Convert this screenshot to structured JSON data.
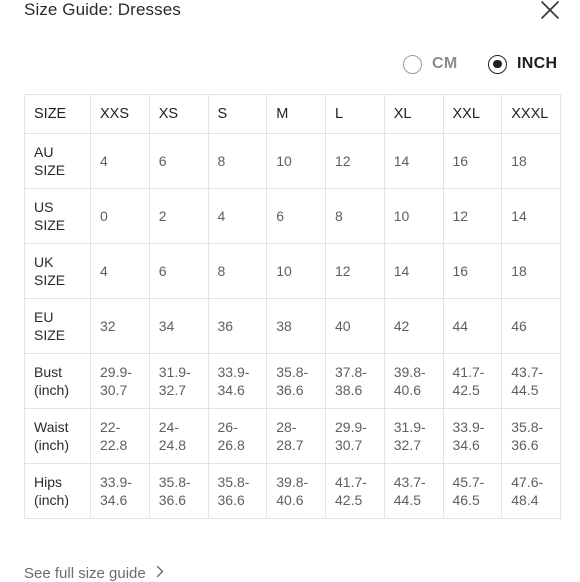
{
  "header": {
    "title": "Size Guide: Dresses",
    "close_icon": "close-icon"
  },
  "units": {
    "options": [
      {
        "label": "CM",
        "selected": false
      },
      {
        "label": "INCH",
        "selected": true
      }
    ]
  },
  "table": {
    "header": [
      "SIZE",
      "XXS",
      "XS",
      "S",
      "M",
      "L",
      "XL",
      "XXL",
      "XXXL"
    ],
    "rows": [
      {
        "label": "AU\nSIZE",
        "values": [
          "4",
          "6",
          "8",
          "10",
          "12",
          "14",
          "16",
          "18"
        ]
      },
      {
        "label": "US\nSIZE",
        "values": [
          "0",
          "2",
          "4",
          "6",
          "8",
          "10",
          "12",
          "14"
        ]
      },
      {
        "label": "UK\nSIZE",
        "values": [
          "4",
          "6",
          "8",
          "10",
          "12",
          "14",
          "16",
          "18"
        ]
      },
      {
        "label": "EU\nSIZE",
        "values": [
          "32",
          "34",
          "36",
          "38",
          "40",
          "42",
          "44",
          "46"
        ]
      },
      {
        "label": "Bust\n(inch)",
        "values": [
          "29.9-\n30.7",
          "31.9-\n32.7",
          "33.9-\n34.6",
          "35.8-\n36.6",
          "37.8-\n38.6",
          "39.8-\n40.6",
          "41.7-\n42.5",
          "43.7-\n44.5"
        ]
      },
      {
        "label": "Waist\n(inch)",
        "values": [
          "22-\n22.8",
          "24-\n24.8",
          "26-\n26.8",
          "28-\n28.7",
          "29.9-\n30.7",
          "31.9-\n32.7",
          "33.9-\n34.6",
          "35.8-\n36.6"
        ]
      },
      {
        "label": "Hips\n(inch)",
        "values": [
          "33.9-\n34.6",
          "35.8-\n36.6",
          "35.8-\n36.6",
          "39.8-\n40.6",
          "41.7-\n42.5",
          "43.7-\n44.5",
          "45.7-\n46.5",
          "47.6-\n48.4"
        ]
      }
    ]
  },
  "footer": {
    "link_label": "See full size guide",
    "chevron_icon": "chevron-right-icon"
  },
  "colors": {
    "text": "#222222",
    "muted": "#5f5f5f",
    "border": "#e4e4e4"
  }
}
